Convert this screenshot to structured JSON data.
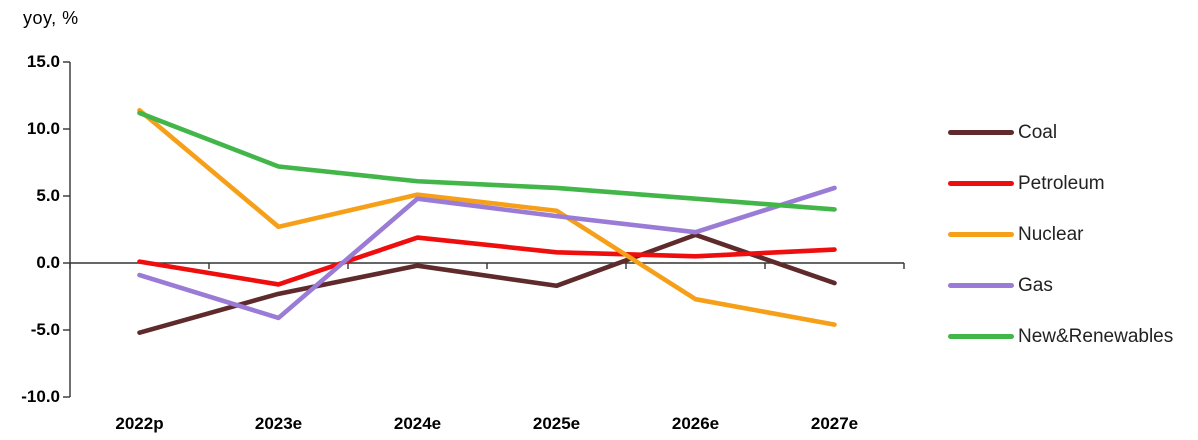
{
  "axis": {
    "unit_label": "yoy, %",
    "y_tick_labels": [
      "15.0",
      "10.0",
      "5.0",
      "0.0",
      "-5.0",
      "-10.0"
    ],
    "axis_color": "#333333"
  },
  "chart_data": {
    "type": "line",
    "title": "",
    "ylabel": "yoy, %",
    "xlabel": "",
    "categories": [
      "2022p",
      "2023e",
      "2024e",
      "2025e",
      "2026e",
      "2027e"
    ],
    "y_ticks": [
      15.0,
      10.0,
      5.0,
      0.0,
      -5.0,
      -10.0
    ],
    "ylim": [
      -10.0,
      15.0
    ],
    "grid": false,
    "legend_position": "right",
    "series": [
      {
        "name": "Coal",
        "color": "#5F2A2C",
        "values": [
          -5.2,
          -2.3,
          -0.2,
          -1.7,
          2.1,
          -1.5
        ]
      },
      {
        "name": "Petroleum",
        "color": "#EE0E0E",
        "values": [
          0.1,
          -1.6,
          1.9,
          0.8,
          0.5,
          1.0
        ]
      },
      {
        "name": "Nuclear",
        "color": "#F6A01A",
        "values": [
          11.4,
          2.7,
          5.1,
          3.9,
          -2.7,
          -4.6
        ]
      },
      {
        "name": "Gas",
        "color": "#9A7BD6",
        "values": [
          -0.9,
          -4.1,
          4.8,
          3.5,
          2.3,
          5.6
        ]
      },
      {
        "name": "New&Renewables",
        "color": "#42B649",
        "values": [
          11.2,
          7.2,
          6.1,
          5.6,
          4.8,
          4.0
        ]
      }
    ]
  }
}
